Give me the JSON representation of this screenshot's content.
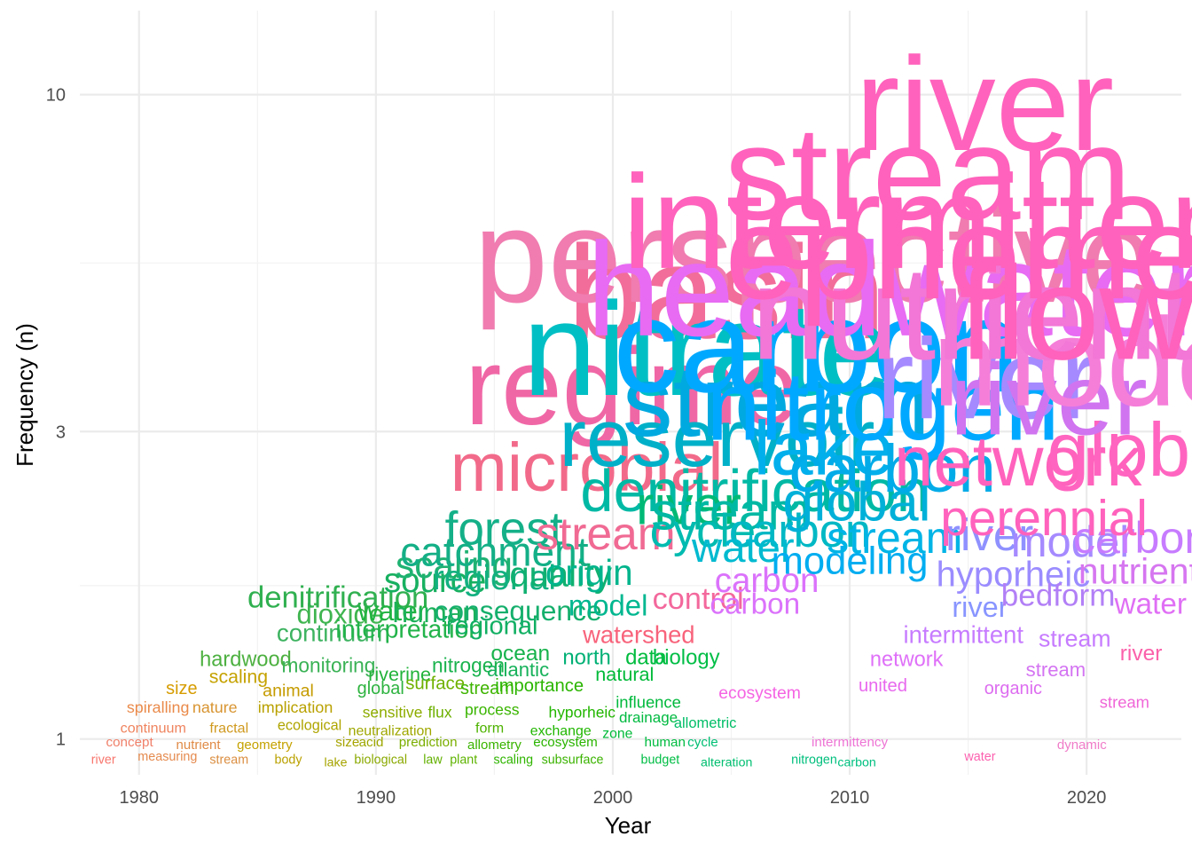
{
  "chart_data": {
    "type": "scatter",
    "subtype": "word-cloud-by-year",
    "title": "",
    "xlabel": "Year",
    "ylabel": "Frequency (n)",
    "xlim": [
      1977.5,
      2024
    ],
    "ylim": [
      0.88,
      13.5
    ],
    "yscale": "log",
    "x_ticks": [
      1980,
      1990,
      2000,
      2010,
      2020
    ],
    "y_ticks": [
      1,
      3,
      10
    ],
    "y_minor": [
      1.73,
      5.48
    ],
    "grid": true,
    "legend": "none",
    "words": [
      {
        "w": "river",
        "year": 1978.5,
        "n": 0.93,
        "c": "#F8766D"
      },
      {
        "w": "concept",
        "year": 1979.6,
        "n": 0.99,
        "c": "#F0806A"
      },
      {
        "w": "continuum",
        "year": 1980.6,
        "n": 1.04,
        "c": "#EF845F"
      },
      {
        "w": "spiralling",
        "year": 1980.8,
        "n": 1.12,
        "c": "#EA8A4A"
      },
      {
        "w": "measuring",
        "year": 1981.2,
        "n": 0.94,
        "c": "#E58B4F"
      },
      {
        "w": "size",
        "year": 1981.8,
        "n": 1.2,
        "c": "#D69C00"
      },
      {
        "w": "nutrient",
        "year": 1982.5,
        "n": 0.98,
        "c": "#E08B46"
      },
      {
        "w": "nature",
        "year": 1983.2,
        "n": 1.12,
        "c": "#D89430"
      },
      {
        "w": "stream",
        "year": 1983.8,
        "n": 0.93,
        "c": "#DB8E41"
      },
      {
        "w": "fractal",
        "year": 1983.8,
        "n": 1.04,
        "c": "#D09A20"
      },
      {
        "w": "scaling",
        "year": 1984.2,
        "n": 1.25,
        "c": "#C5A200"
      },
      {
        "w": "hardwood",
        "year": 1984.5,
        "n": 1.33,
        "c": "#4DB040"
      },
      {
        "w": "geometry",
        "year": 1985.3,
        "n": 0.98,
        "c": "#C5A200"
      },
      {
        "w": "animal",
        "year": 1986.3,
        "n": 1.19,
        "c": "#C59B00"
      },
      {
        "w": "implication",
        "year": 1986.6,
        "n": 1.12,
        "c": "#B9A100"
      },
      {
        "w": "body",
        "year": 1986.3,
        "n": 0.93,
        "c": "#BAA100"
      },
      {
        "w": "ecological",
        "year": 1987.2,
        "n": 1.05,
        "c": "#AFA500"
      },
      {
        "w": "monitoring",
        "year": 1988.0,
        "n": 1.3,
        "c": "#3AB255"
      },
      {
        "w": "continuum",
        "year": 1988.2,
        "n": 1.46,
        "c": "#3DB360"
      },
      {
        "w": "dioxide",
        "year": 1988.5,
        "n": 1.56,
        "c": "#40B550"
      },
      {
        "w": "denitrification",
        "year": 1988.4,
        "n": 1.66,
        "c": "#30B050"
      },
      {
        "w": "size",
        "year": 1988.8,
        "n": 0.99,
        "c": "#A6A400"
      },
      {
        "w": "lake",
        "year": 1988.3,
        "n": 0.92,
        "c": "#A6A400"
      },
      {
        "w": "neutralization",
        "year": 1990.6,
        "n": 1.03,
        "c": "#9FA700"
      },
      {
        "w": "acid",
        "year": 1989.8,
        "n": 0.99,
        "c": "#9CA700"
      },
      {
        "w": "biological",
        "year": 1990.2,
        "n": 0.93,
        "c": "#8AA900"
      },
      {
        "w": "global",
        "year": 1990.2,
        "n": 1.2,
        "c": "#2EB340"
      },
      {
        "w": "sensitive",
        "year": 1990.7,
        "n": 1.1,
        "c": "#8DAC00"
      },
      {
        "w": "riverine",
        "year": 1991.0,
        "n": 1.26,
        "c": "#22B33A"
      },
      {
        "w": "interpretation",
        "year": 1991.4,
        "n": 1.48,
        "c": "#22B34A"
      },
      {
        "w": "water",
        "year": 1990.7,
        "n": 1.58,
        "c": "#1FB340"
      },
      {
        "w": "prediction",
        "year": 1992.2,
        "n": 0.99,
        "c": "#7BAE00"
      },
      {
        "w": "law",
        "year": 1992.4,
        "n": 0.93,
        "c": "#63B000"
      },
      {
        "w": "surface",
        "year": 1992.5,
        "n": 1.22,
        "c": "#6FB100"
      },
      {
        "w": "flux",
        "year": 1992.7,
        "n": 1.1,
        "c": "#6DB000"
      },
      {
        "w": "human",
        "year": 1992.5,
        "n": 1.57,
        "c": "#1CB15A"
      },
      {
        "w": "source",
        "year": 1992.5,
        "n": 1.76,
        "c": "#17B060"
      },
      {
        "w": "scaling",
        "year": 1993.3,
        "n": 1.86,
        "c": "#1FB272"
      },
      {
        "w": "nitrogen",
        "year": 1993.9,
        "n": 1.3,
        "c": "#1AB34E"
      },
      {
        "w": "plant",
        "year": 1993.7,
        "n": 0.93,
        "c": "#5EB300"
      },
      {
        "w": "stream",
        "year": 1994.7,
        "n": 1.2,
        "c": "#3EB400"
      },
      {
        "w": "form",
        "year": 1994.8,
        "n": 1.04,
        "c": "#4EB300"
      },
      {
        "w": "allometry",
        "year": 1995.0,
        "n": 0.98,
        "c": "#3AB400"
      },
      {
        "w": "process",
        "year": 1994.9,
        "n": 1.11,
        "c": "#3AB500"
      },
      {
        "w": "regional",
        "year": 1994.9,
        "n": 1.5,
        "c": "#10AF62"
      },
      {
        "w": "regional",
        "year": 1995.0,
        "n": 1.78,
        "c": "#12B080"
      },
      {
        "w": "catchment",
        "year": 1995.0,
        "n": 1.95,
        "c": "#14AF86"
      },
      {
        "w": "forest",
        "year": 1995.4,
        "n": 2.12,
        "c": "#14B088"
      },
      {
        "w": "consequence",
        "year": 1996.0,
        "n": 1.58,
        "c": "#15AF6C"
      },
      {
        "w": "scaling",
        "year": 1995.8,
        "n": 0.93,
        "c": "#2FB500"
      },
      {
        "w": "ocean",
        "year": 1996.1,
        "n": 1.36,
        "c": "#17B24C"
      },
      {
        "w": "atlantic",
        "year": 1996.0,
        "n": 1.28,
        "c": "#17B25A"
      },
      {
        "w": "importance",
        "year": 1996.9,
        "n": 1.21,
        "c": "#2AB500"
      },
      {
        "w": "ecosystem",
        "year": 1998.0,
        "n": 0.99,
        "c": "#2AB400"
      },
      {
        "w": "subsurface",
        "year": 1998.3,
        "n": 0.93,
        "c": "#3BB300"
      },
      {
        "w": "exchange",
        "year": 1997.8,
        "n": 1.03,
        "c": "#20B600"
      },
      {
        "w": "hyporheic",
        "year": 1998.7,
        "n": 1.1,
        "c": "#22B600"
      },
      {
        "w": "quality",
        "year": 1997.8,
        "n": 1.8,
        "c": "#10B070"
      },
      {
        "w": "north",
        "year": 1998.9,
        "n": 1.34,
        "c": "#00B075"
      },
      {
        "w": "origin",
        "year": 1999.0,
        "n": 1.81,
        "c": "#00B48C"
      },
      {
        "w": "model",
        "year": 1999.8,
        "n": 1.61,
        "c": "#00B790"
      },
      {
        "w": "natural",
        "year": 2000.5,
        "n": 1.26,
        "c": "#00BA38"
      },
      {
        "w": "zone",
        "year": 2000.2,
        "n": 1.02,
        "c": "#00BA38"
      },
      {
        "w": "influence",
        "year": 2001.5,
        "n": 1.14,
        "c": "#00B93C"
      },
      {
        "w": "drainage",
        "year": 2001.5,
        "n": 1.08,
        "c": "#00BA40"
      },
      {
        "w": "data",
        "year": 2001.4,
        "n": 1.34,
        "c": "#00BC3E"
      },
      {
        "w": "human",
        "year": 2002.2,
        "n": 0.99,
        "c": "#00BC40"
      },
      {
        "w": "budget",
        "year": 2002.0,
        "n": 0.93,
        "c": "#00BD44"
      },
      {
        "w": "biology",
        "year": 2003.1,
        "n": 1.34,
        "c": "#00BE46"
      },
      {
        "w": "allometric",
        "year": 2003.9,
        "n": 1.06,
        "c": "#00BE67"
      },
      {
        "w": "cycle",
        "year": 2003.8,
        "n": 0.99,
        "c": "#00BF74"
      },
      {
        "w": "alteration",
        "year": 2004.8,
        "n": 0.92,
        "c": "#00BE70"
      },
      {
        "w": "nitrogen",
        "year": 2008.5,
        "n": 0.93,
        "c": "#00BF7D"
      },
      {
        "w": "carbon",
        "year": 2010.3,
        "n": 0.92,
        "c": "#00C080"
      },
      {
        "w": "stream",
        "year": 1999.7,
        "n": 2.08,
        "c": "#F06A94"
      },
      {
        "w": "watershed",
        "year": 2001.1,
        "n": 1.45,
        "c": "#F8637B"
      },
      {
        "w": "control",
        "year": 2003.6,
        "n": 1.65,
        "c": "#F3689C"
      },
      {
        "w": "microbial",
        "year": 1998.9,
        "n": 2.63,
        "c": "#F26A8A"
      },
      {
        "w": "regime",
        "year": 2000.8,
        "n": 3.5,
        "c": "#F067A6"
      },
      {
        "w": "basin",
        "year": 2004.8,
        "n": 4.9,
        "c": "#F26D9A"
      },
      {
        "w": "perspective",
        "year": 2008.5,
        "n": 5.58,
        "c": "#F07CB0"
      },
      {
        "w": "ecosystem",
        "year": 2006.2,
        "n": 1.18,
        "c": "#F564E3"
      },
      {
        "w": "intermittency",
        "year": 2010.0,
        "n": 0.99,
        "c": "#EE74D5"
      },
      {
        "w": "carbon",
        "year": 2006.5,
        "n": 1.76,
        "c": "#DB72FB"
      },
      {
        "w": "carbon",
        "year": 2006.0,
        "n": 1.62,
        "c": "#DB72FB"
      },
      {
        "w": "nitrate",
        "year": 2004.0,
        "n": 4.0,
        "c": "#00BFC4"
      },
      {
        "w": "denitrification",
        "year": 2006.0,
        "n": 2.42,
        "c": "#00B9A5"
      },
      {
        "w": "reservoir",
        "year": 2004.4,
        "n": 2.92,
        "c": "#00B0C8"
      },
      {
        "w": "river",
        "year": 2003.2,
        "n": 2.3,
        "c": "#00B974"
      },
      {
        "w": "stream",
        "year": 2005.0,
        "n": 2.25,
        "c": "#00B8A3"
      },
      {
        "w": "cycle",
        "year": 2003.8,
        "n": 2.1,
        "c": "#00BBB0"
      },
      {
        "w": "carbon",
        "year": 2007.9,
        "n": 2.1,
        "c": "#00B8C4"
      },
      {
        "w": "water",
        "year": 2005.5,
        "n": 1.98,
        "c": "#00BAD0"
      },
      {
        "w": "stream",
        "year": 2006.9,
        "n": 3.33,
        "c": "#00A9E0"
      },
      {
        "w": "carbon",
        "year": 2008.6,
        "n": 4.05,
        "c": "#00A9FF"
      },
      {
        "w": "lake",
        "year": 2008.9,
        "n": 2.82,
        "c": "#00AFEC"
      },
      {
        "w": "modeling",
        "year": 2010.0,
        "n": 1.89,
        "c": "#00ADF0"
      },
      {
        "w": "global",
        "year": 2010.3,
        "n": 2.33,
        "c": "#00B0D8"
      },
      {
        "w": "carbon",
        "year": 2011.8,
        "n": 2.62,
        "c": "#00ABE8"
      },
      {
        "w": "stream",
        "year": 2011.9,
        "n": 2.05,
        "c": "#00B4E6"
      },
      {
        "w": "nitrogen",
        "year": 2011.4,
        "n": 3.27,
        "c": "#00A9FF"
      },
      {
        "w": "headwater",
        "year": 2012.0,
        "n": 4.95,
        "c": "#E76BF3"
      },
      {
        "w": "united",
        "year": 2011.4,
        "n": 1.21,
        "c": "#E868EE"
      },
      {
        "w": "network",
        "year": 2012.4,
        "n": 1.33,
        "c": "#DF70F8"
      },
      {
        "w": "intermittent",
        "year": 2014.8,
        "n": 1.45,
        "c": "#C77CFF"
      },
      {
        "w": "organic",
        "year": 2016.9,
        "n": 1.2,
        "c": "#DD6DF0"
      },
      {
        "w": "water",
        "year": 2015.5,
        "n": 0.94,
        "c": "#FC61AF"
      },
      {
        "w": "dynamic",
        "year": 2019.8,
        "n": 0.98,
        "c": "#F07CC8"
      },
      {
        "w": "river",
        "year": 2015.5,
        "n": 1.6,
        "c": "#8895FF"
      },
      {
        "w": "river",
        "year": 2015.9,
        "n": 2.07,
        "c": "#8F91FF"
      },
      {
        "w": "hyporheic",
        "year": 2016.9,
        "n": 1.8,
        "c": "#9B8CFF"
      },
      {
        "w": "bedform",
        "year": 2018.8,
        "n": 1.67,
        "c": "#B27FF6"
      },
      {
        "w": "model",
        "year": 2019.3,
        "n": 2.02,
        "c": "#A58AFF"
      },
      {
        "w": "stream",
        "year": 2019.5,
        "n": 1.43,
        "c": "#C77CFF"
      },
      {
        "w": "stream",
        "year": 2018.7,
        "n": 1.28,
        "c": "#D474F2"
      },
      {
        "w": "carbon",
        "year": 2022.3,
        "n": 2.05,
        "c": "#C77CFF"
      },
      {
        "w": "nutrient",
        "year": 2022.2,
        "n": 1.82,
        "c": "#D676F0"
      },
      {
        "w": "water",
        "year": 2022.7,
        "n": 1.62,
        "c": "#E06FF5"
      },
      {
        "w": "river",
        "year": 2022.3,
        "n": 1.36,
        "c": "#FB61AA"
      },
      {
        "w": "stream",
        "year": 2021.6,
        "n": 1.14,
        "c": "#F066D8"
      },
      {
        "w": "network",
        "year": 2017.1,
        "n": 2.69,
        "c": "#FF62BC"
      },
      {
        "w": "perennial",
        "year": 2018.2,
        "n": 2.2,
        "c": "#FF62BC"
      },
      {
        "w": "global",
        "year": 2022.6,
        "n": 2.8,
        "c": "#FF65C0"
      },
      {
        "w": "river",
        "year": 2015.8,
        "n": 3.6,
        "c": "#A58AFF"
      },
      {
        "w": "river",
        "year": 2018.4,
        "n": 3.35,
        "c": "#D074F0"
      },
      {
        "w": "model",
        "year": 2020.7,
        "n": 3.82,
        "c": "#F57ED9"
      },
      {
        "w": "nutrient",
        "year": 2015.2,
        "n": 4.55,
        "c": "#F277D6"
      },
      {
        "w": "flow",
        "year": 2019.6,
        "n": 4.55,
        "c": "#FF62BC"
      },
      {
        "w": "ephemeral",
        "year": 2018.0,
        "n": 5.65,
        "c": "#FF62BC"
      },
      {
        "w": "intermittent",
        "year": 2014.3,
        "n": 6.3,
        "c": "#FF62BC"
      },
      {
        "w": "stream",
        "year": 2013.3,
        "n": 7.5,
        "c": "#FF62BC"
      },
      {
        "w": "river",
        "year": 2015.7,
        "n": 9.6,
        "c": "#FF62BC"
      }
    ]
  }
}
